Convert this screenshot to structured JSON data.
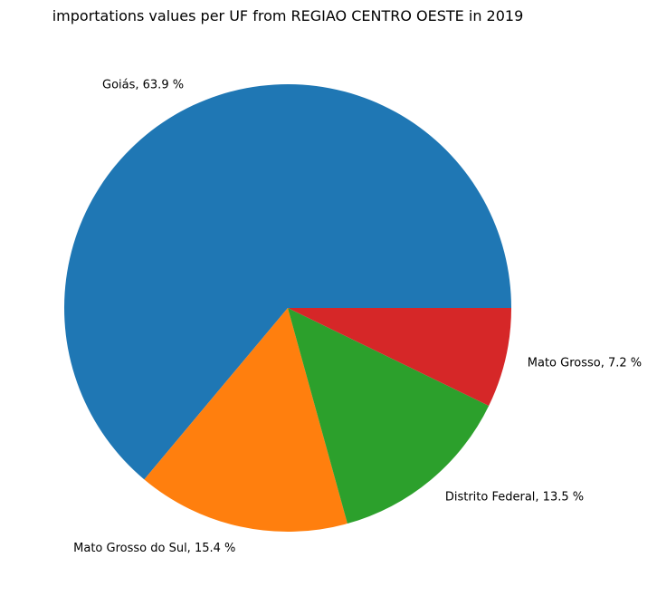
{
  "chart_data": {
    "type": "pie",
    "title": "importations values per UF from REGIAO CENTRO OESTE in 2019",
    "slices": [
      {
        "name": "Goiás",
        "value": 63.9,
        "label": "Goiás, 63.9 %",
        "color": "#1f77b4"
      },
      {
        "name": "Mato Grosso do Sul",
        "value": 15.4,
        "label": "Mato Grosso do Sul, 15.4 %",
        "color": "#ff7f0e"
      },
      {
        "name": "Distrito Federal",
        "value": 13.5,
        "label": "Distrito Federal, 13.5 %",
        "color": "#2ca02c"
      },
      {
        "name": "Mato Grosso",
        "value": 7.2,
        "label": "Mato Grosso, 7.2 %",
        "color": "#d62728"
      }
    ]
  }
}
